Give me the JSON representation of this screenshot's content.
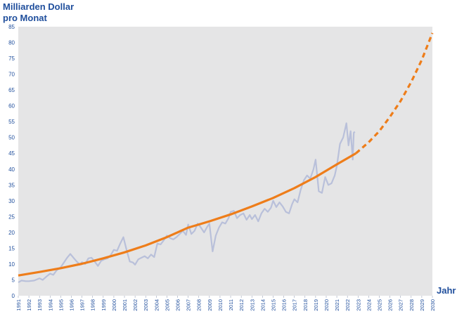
{
  "chart_data": {
    "type": "line",
    "ylabel_line1": "Milliarden Dollar",
    "ylabel_line2": "pro Monat",
    "xlabel": "Jahr",
    "xlim": [
      1991,
      2030
    ],
    "ylim": [
      0,
      85
    ],
    "yticks": [
      0,
      5,
      10,
      15,
      20,
      25,
      30,
      35,
      40,
      45,
      50,
      55,
      60,
      65,
      70,
      75,
      80,
      85
    ],
    "xticks": [
      "1991",
      "1992",
      "1993",
      "1994",
      "1995",
      "1996",
      "1997",
      "1998",
      "1999",
      "2000",
      "2001",
      "2002",
      "2003",
      "2004",
      "2005",
      "2006",
      "2007",
      "2008",
      "2009",
      "2010",
      "2011",
      "2012",
      "2013",
      "2014",
      "2015",
      "2016",
      "2017",
      "2018",
      "2019",
      "2020",
      "2021",
      "2022",
      "2023",
      "2024",
      "2025",
      "2026",
      "2027",
      "2028",
      "2029",
      "2030"
    ],
    "grid": false,
    "colors": {
      "plot_bg": "#e5e5e6",
      "actual": "#b9c0da",
      "trend": "#ee7d1a",
      "axis_text": "#1f4e9c"
    },
    "series": [
      {
        "style": "actual-monthly",
        "x": [
          1991.0,
          1991.3,
          1991.7,
          1992.0,
          1992.5,
          1993.0,
          1993.3,
          1993.7,
          1994.0,
          1994.3,
          1994.6,
          1995.0,
          1995.3,
          1995.6,
          1995.9,
          1996.2,
          1996.5,
          1996.8,
          1997.0,
          1997.3,
          1997.6,
          1997.9,
          1998.2,
          1998.5,
          1998.8,
          1999.1,
          1999.4,
          1999.7,
          2000.0,
          2000.3,
          2000.6,
          2000.9,
          2001.2,
          2001.5,
          2001.8,
          2002.0,
          2002.3,
          2002.6,
          2002.9,
          2003.2,
          2003.5,
          2003.8,
          2004.1,
          2004.4,
          2004.7,
          2005.0,
          2005.3,
          2005.6,
          2005.9,
          2006.2,
          2006.5,
          2006.8,
          2007.0,
          2007.3,
          2007.6,
          2007.9,
          2008.2,
          2008.5,
          2008.8,
          2009.0,
          2009.3,
          2009.6,
          2009.9,
          2010.2,
          2010.5,
          2010.8,
          2011.0,
          2011.3,
          2011.6,
          2011.9,
          2012.2,
          2012.5,
          2012.8,
          2013.0,
          2013.3,
          2013.6,
          2013.9,
          2014.2,
          2014.5,
          2014.8,
          2015.0,
          2015.3,
          2015.6,
          2015.9,
          2016.2,
          2016.5,
          2016.8,
          2017.0,
          2017.3,
          2017.6,
          2017.9,
          2018.2,
          2018.5,
          2018.8,
          2019.0,
          2019.3,
          2019.6,
          2019.9,
          2020.2,
          2020.5,
          2020.8,
          2021.0,
          2021.3,
          2021.6,
          2021.9,
          2022.1,
          2022.3,
          2022.5,
          2022.6,
          2022.7
        ],
        "values": [
          4.2,
          4.8,
          4.6,
          4.6,
          4.8,
          5.5,
          5.0,
          6.2,
          7.0,
          6.6,
          8.0,
          9.0,
          10.5,
          12.0,
          13.2,
          12.0,
          10.8,
          9.8,
          10.6,
          10.0,
          11.8,
          12.0,
          10.8,
          9.4,
          11.0,
          11.5,
          11.8,
          12.8,
          14.5,
          14.2,
          16.5,
          18.5,
          14.5,
          10.8,
          10.5,
          9.8,
          11.5,
          12.0,
          12.5,
          11.8,
          13.0,
          12.2,
          16.5,
          16.2,
          17.5,
          19.0,
          18.2,
          17.8,
          18.5,
          19.5,
          20.5,
          19.2,
          22.5,
          19.5,
          20.5,
          22.8,
          21.5,
          20.0,
          21.8,
          22.8,
          14.0,
          19.0,
          21.5,
          23.2,
          22.8,
          24.5,
          26.5,
          26.8,
          24.5,
          25.5,
          26.0,
          24.0,
          25.5,
          24.2,
          25.5,
          23.5,
          26.0,
          27.5,
          26.5,
          27.8,
          30.0,
          28.0,
          29.5,
          28.2,
          26.5,
          26.0,
          29.0,
          30.5,
          29.5,
          33.5,
          36.5,
          38.0,
          37.0,
          40.0,
          43.0,
          33.0,
          32.5,
          37.5,
          35.0,
          35.5,
          38.0,
          41.0,
          48.0,
          50.0,
          54.5,
          47.5,
          52.0,
          43.0,
          51.5,
          51.8
        ]
      },
      {
        "style": "trend",
        "x": [
          1991,
          1993,
          1995,
          1997,
          1999,
          2001,
          2003,
          2005,
          2007,
          2009,
          2011,
          2013,
          2015,
          2017,
          2019,
          2021,
          2022.8
        ],
        "values": [
          6.4,
          7.5,
          8.7,
          10.1,
          11.8,
          13.7,
          15.9,
          18.5,
          21.5,
          23.5,
          25.7,
          28.2,
          30.9,
          34.0,
          37.5,
          41.5,
          45.0
        ]
      },
      {
        "style": "trend-projection",
        "x": [
          2022.8,
          2024,
          2025,
          2026,
          2027,
          2028,
          2029,
          2030
        ],
        "values": [
          45.0,
          48.5,
          52.0,
          56.5,
          61.5,
          67.5,
          74.5,
          83.0
        ]
      }
    ]
  }
}
